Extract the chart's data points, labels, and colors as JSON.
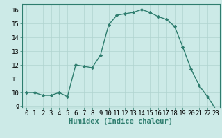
{
  "x": [
    0,
    1,
    2,
    3,
    4,
    5,
    6,
    7,
    8,
    9,
    10,
    11,
    12,
    13,
    14,
    15,
    16,
    17,
    18,
    19,
    20,
    21,
    22,
    23
  ],
  "y": [
    10.0,
    10.0,
    9.8,
    9.8,
    10.0,
    9.7,
    12.0,
    11.9,
    11.8,
    12.7,
    14.9,
    15.6,
    15.7,
    15.8,
    16.0,
    15.8,
    15.5,
    15.3,
    14.8,
    13.3,
    11.7,
    10.5,
    9.7,
    8.8
  ],
  "line_color": "#2e7d6e",
  "marker": "D",
  "marker_size": 2.2,
  "bg_color": "#cceae7",
  "grid_color": "#b0d4d0",
  "xlabel": "Humidex (Indice chaleur)",
  "ylim": [
    8.9,
    16.4
  ],
  "xlim": [
    -0.5,
    23.5
  ],
  "yticks": [
    9,
    10,
    11,
    12,
    13,
    14,
    15,
    16
  ],
  "xticks": [
    0,
    1,
    2,
    3,
    4,
    5,
    6,
    7,
    8,
    9,
    10,
    11,
    12,
    13,
    14,
    15,
    16,
    17,
    18,
    19,
    20,
    21,
    22,
    23
  ],
  "tick_fontsize": 6.5,
  "xlabel_fontsize": 7.5,
  "spine_color": "#2e7d6e",
  "line_width": 1.0
}
